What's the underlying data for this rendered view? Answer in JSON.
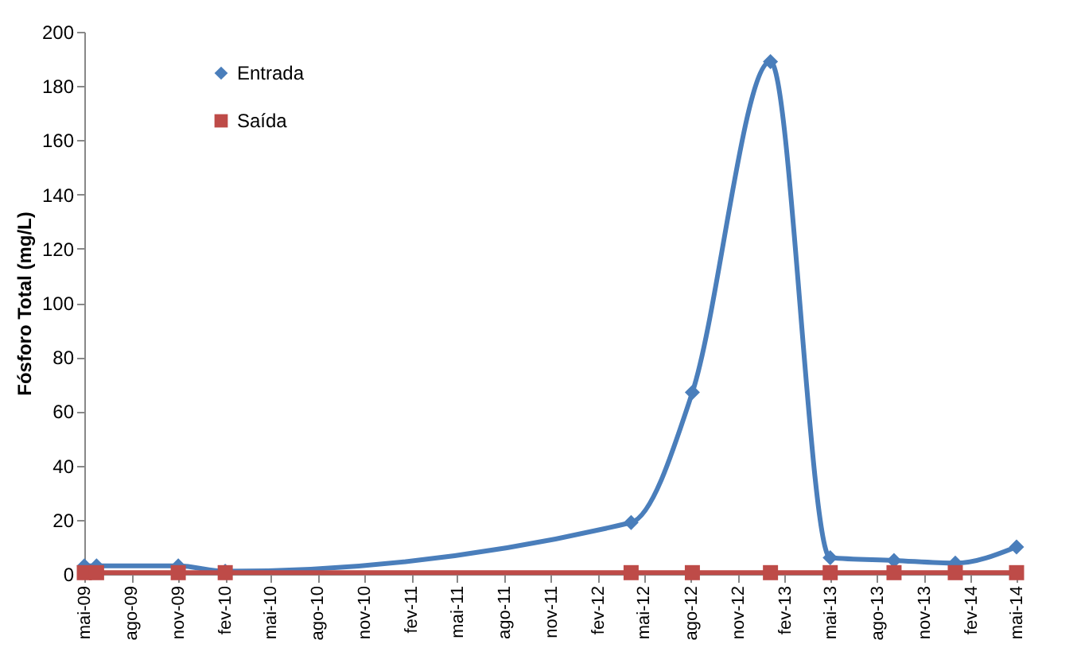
{
  "chart_data": {
    "type": "line",
    "ylabel": "Fósforo Total (mg/L)",
    "x": [
      "2009-05-01",
      "2009-05-25",
      "2009-11-01",
      "2010-02-01",
      "2012-04-06",
      "2012-08-04",
      "2013-01-04",
      "2013-05-01",
      "2013-09-03",
      "2014-01-01",
      "2014-05-01"
    ],
    "series": [
      {
        "name": "Entrada",
        "color": "#4a7ebb",
        "marker": "diamond",
        "values": [
          3,
          3,
          3,
          1,
          19,
          67,
          189,
          6,
          5,
          4,
          10
        ]
      },
      {
        "name": "Saída",
        "color": "#be4b48",
        "marker": "square",
        "values": [
          0.5,
          0.5,
          0.5,
          0.5,
          0.5,
          0.5,
          0.5,
          0.5,
          0.5,
          0.5,
          0.5
        ]
      }
    ],
    "xlim": [
      "2009-05-01",
      "2014-05-01"
    ],
    "xticks": [
      {
        "value": "2009-05-01",
        "label": "mai-09"
      },
      {
        "value": "2009-08-01",
        "label": "ago-09"
      },
      {
        "value": "2009-11-01",
        "label": "nov-09"
      },
      {
        "value": "2010-02-01",
        "label": "fev-10"
      },
      {
        "value": "2010-05-01",
        "label": "mai-10"
      },
      {
        "value": "2010-08-01",
        "label": "ago-10"
      },
      {
        "value": "2010-11-01",
        "label": "nov-10"
      },
      {
        "value": "2011-02-01",
        "label": "fev-11"
      },
      {
        "value": "2011-05-01",
        "label": "mai-11"
      },
      {
        "value": "2011-08-01",
        "label": "ago-11"
      },
      {
        "value": "2011-11-01",
        "label": "nov-11"
      },
      {
        "value": "2012-02-01",
        "label": "fev-12"
      },
      {
        "value": "2012-05-01",
        "label": "mai-12"
      },
      {
        "value": "2012-08-01",
        "label": "ago-12"
      },
      {
        "value": "2012-11-01",
        "label": "nov-12"
      },
      {
        "value": "2013-02-01",
        "label": "fev-13"
      },
      {
        "value": "2013-05-01",
        "label": "mai-13"
      },
      {
        "value": "2013-08-01",
        "label": "ago-13"
      },
      {
        "value": "2013-11-01",
        "label": "nov-13"
      },
      {
        "value": "2014-02-01",
        "label": "fev-14"
      },
      {
        "value": "2014-05-01",
        "label": "mai-14"
      }
    ],
    "ylim": [
      0,
      200
    ],
    "yticks": [
      0,
      20,
      40,
      60,
      80,
      100,
      120,
      140,
      160,
      180,
      200
    ],
    "grid": false,
    "legend": "top left",
    "line_style": "solid"
  }
}
